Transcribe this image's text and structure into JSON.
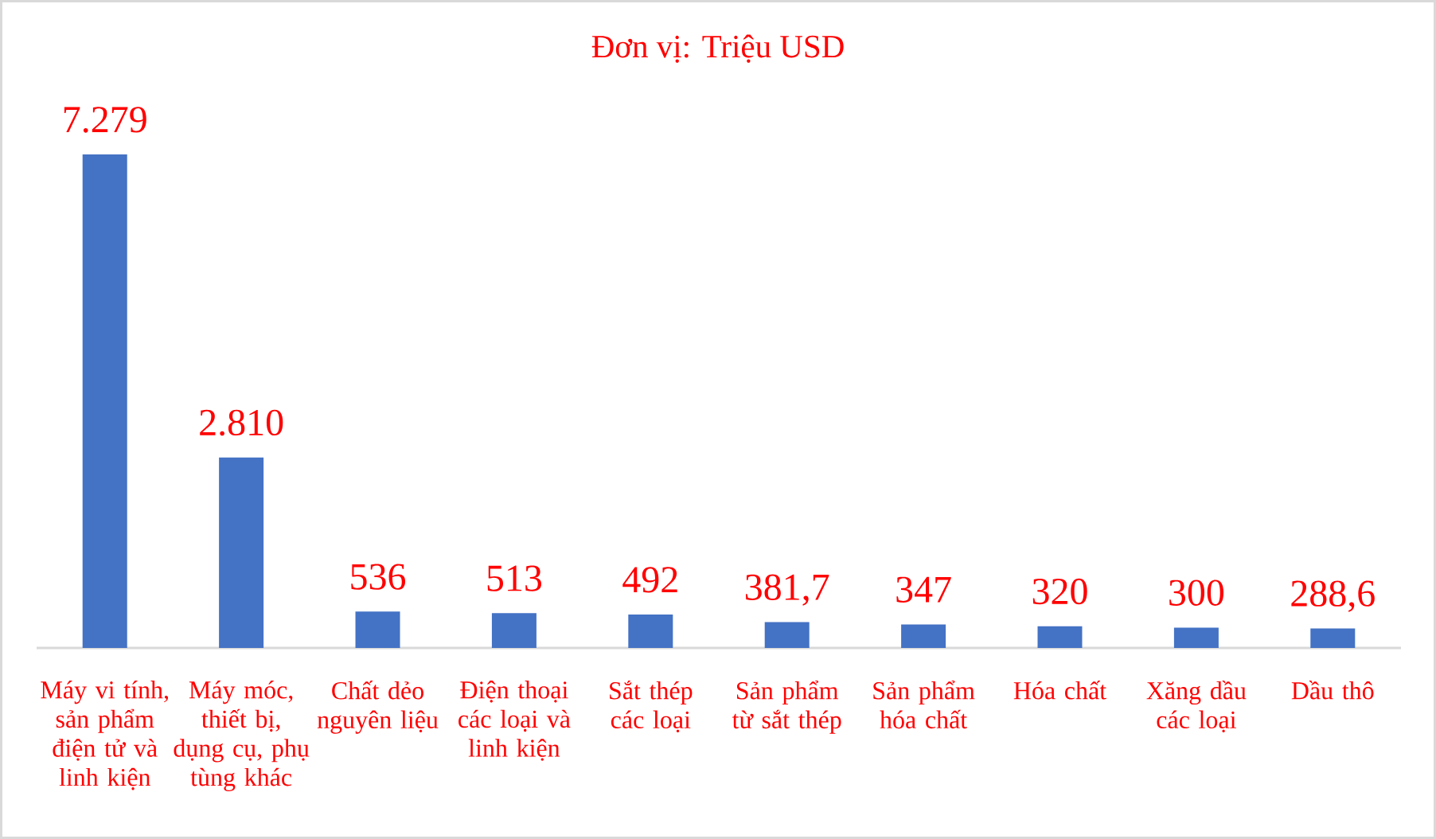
{
  "chart_data": {
    "type": "bar",
    "title": "Đơn vị: Triệu USD",
    "categories": [
      "Máy vi tính, sản phẩm điện tử và linh kiện",
      "Máy móc, thiết bị, dụng cụ, phụ tùng khác",
      "Chất dẻo nguyên liệu",
      "Điện thoại các loại và linh kiện",
      "Sắt thép các loại",
      "Sản phẩm từ sắt thép",
      "Sản phẩm hóa chất",
      "Hóa chất",
      "Xăng dầu các loại",
      "Dầu thô"
    ],
    "values": [
      7279,
      2810,
      536,
      513,
      492,
      381.7,
      347,
      320,
      300,
      288.6
    ],
    "value_labels": [
      "7.279",
      "2.810",
      "536",
      "513",
      "492",
      "381,7",
      "347",
      "320",
      "300",
      "288,6"
    ],
    "color": "#4472c4",
    "tick_labels": "x"
  }
}
